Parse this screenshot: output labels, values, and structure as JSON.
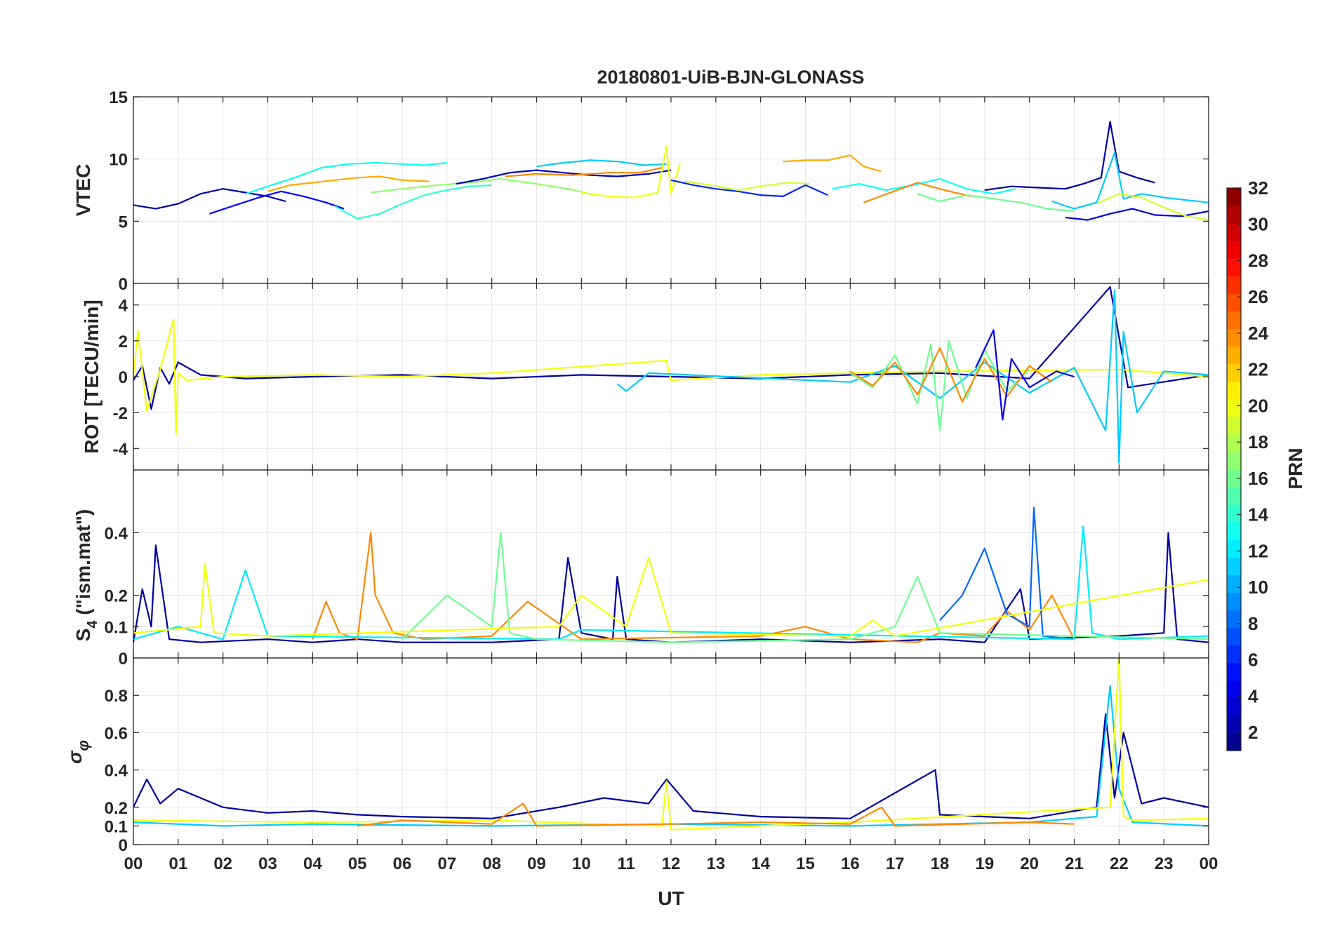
{
  "figure": {
    "title": "20180801-UiB-BJN-GLONASS",
    "xlabel": "UT",
    "x_tick_labels": [
      "00",
      "01",
      "02",
      "03",
      "04",
      "05",
      "06",
      "07",
      "08",
      "09",
      "10",
      "11",
      "12",
      "13",
      "14",
      "15",
      "16",
      "17",
      "18",
      "19",
      "20",
      "21",
      "22",
      "23",
      "00"
    ]
  },
  "chart_data": [
    {
      "type": "line",
      "id": "vtec",
      "ylabel": "VTEC",
      "ylim": [
        0,
        15
      ],
      "yticks": [
        0,
        5,
        10,
        15
      ],
      "xlim": [
        0,
        24
      ],
      "grid": true,
      "color_by": "PRN",
      "series": [
        {
          "prn": 2,
          "x": [
            0.0,
            0.5,
            1.0,
            1.5,
            2.0,
            2.5,
            3.0,
            3.4
          ],
          "y": [
            6.3,
            6.0,
            6.4,
            7.2,
            7.6,
            7.3,
            7.0,
            6.6
          ]
        },
        {
          "prn": 5,
          "x": [
            1.7,
            2.2,
            2.8,
            3.3,
            3.8,
            4.3,
            4.7
          ],
          "y": [
            5.6,
            6.2,
            6.9,
            7.4,
            7.0,
            6.5,
            6.0
          ]
        },
        {
          "prn": 13,
          "x": [
            2.5,
            3.0,
            3.6,
            4.2,
            4.8,
            5.4,
            6.0,
            6.5,
            7.0
          ],
          "y": [
            7.2,
            7.8,
            8.5,
            9.3,
            9.6,
            9.7,
            9.6,
            9.5,
            9.7
          ]
        },
        {
          "prn": 23,
          "x": [
            3.0,
            3.5,
            4.0,
            4.5,
            5.0,
            5.5,
            6.0,
            6.6
          ],
          "y": [
            7.4,
            7.9,
            8.1,
            8.3,
            8.5,
            8.6,
            8.3,
            8.2
          ]
        },
        {
          "prn": 14,
          "x": [
            4.5,
            5.0,
            5.5,
            6.0,
            6.5,
            7.0,
            7.5,
            8.0
          ],
          "y": [
            6.2,
            5.2,
            5.6,
            6.4,
            7.1,
            7.5,
            7.8,
            7.9
          ]
        },
        {
          "prn": 17,
          "x": [
            5.3,
            6.0,
            6.8,
            7.5,
            8.2,
            9.0,
            9.7,
            10.3
          ],
          "y": [
            7.3,
            7.6,
            7.9,
            8.1,
            8.4,
            8.0,
            7.6,
            7.1
          ]
        },
        {
          "prn": 3,
          "x": [
            7.2,
            7.8,
            8.4,
            9.0,
            9.6,
            10.2,
            10.8,
            11.5,
            12.0
          ],
          "y": [
            8.0,
            8.4,
            8.9,
            9.1,
            8.9,
            8.7,
            8.6,
            8.8,
            9.1
          ]
        },
        {
          "prn": 11,
          "x": [
            9.0,
            9.6,
            10.2,
            10.8,
            11.4,
            11.9
          ],
          "y": [
            9.4,
            9.7,
            9.9,
            9.8,
            9.5,
            9.6
          ]
        },
        {
          "prn": 20,
          "x": [
            10.0,
            10.6,
            11.2,
            11.7,
            11.9,
            12.0,
            12.2
          ],
          "y": [
            7.3,
            7.0,
            6.9,
            7.3,
            11.0,
            7.2,
            9.6
          ]
        },
        {
          "prn": 24,
          "x": [
            8.3,
            9.0,
            9.8,
            10.6,
            11.3,
            11.8
          ],
          "y": [
            8.6,
            8.8,
            8.7,
            8.9,
            8.9,
            9.3
          ]
        },
        {
          "prn": 6,
          "x": [
            12.0,
            12.5,
            13.0,
            13.5,
            14.0,
            14.5,
            15.0,
            15.5
          ],
          "y": [
            8.3,
            7.9,
            7.6,
            7.4,
            7.1,
            7.0,
            7.9,
            7.1
          ]
        },
        {
          "prn": 19,
          "x": [
            12.3,
            12.9,
            13.5,
            14.0,
            14.6,
            15.1
          ],
          "y": [
            8.2,
            7.9,
            7.5,
            7.8,
            8.1,
            8.0
          ]
        },
        {
          "prn": 23,
          "x": [
            14.5,
            15.0,
            15.5,
            16.0,
            16.3,
            16.7
          ],
          "y": [
            9.8,
            9.9,
            9.9,
            10.3,
            9.4,
            9.0
          ]
        },
        {
          "prn": 13,
          "x": [
            15.6,
            16.2,
            16.8,
            17.4,
            18.0,
            18.6,
            19.2,
            19.7
          ],
          "y": [
            7.6,
            8.0,
            7.5,
            7.9,
            8.4,
            7.6,
            7.2,
            7.6
          ]
        },
        {
          "prn": 24,
          "x": [
            16.3,
            16.9,
            17.5,
            18.1,
            18.7
          ],
          "y": [
            6.5,
            7.3,
            8.1,
            7.5,
            7.0
          ]
        },
        {
          "prn": 16,
          "x": [
            17.5,
            18.0,
            18.6,
            19.2,
            19.8,
            20.4,
            21.0
          ],
          "y": [
            7.2,
            6.6,
            7.1,
            6.8,
            6.5,
            6.0,
            5.8
          ]
        },
        {
          "prn": 2,
          "x": [
            19.0,
            19.6,
            20.2,
            20.8,
            21.2,
            21.6,
            21.8,
            22.0,
            22.4,
            22.8
          ],
          "y": [
            7.5,
            7.8,
            7.7,
            7.6,
            8.0,
            8.5,
            13.0,
            9.0,
            8.5,
            8.1
          ]
        },
        {
          "prn": 11,
          "x": [
            20.5,
            21.0,
            21.5,
            21.9,
            22.1,
            22.5,
            23.0,
            23.5,
            24.0
          ],
          "y": [
            6.6,
            6.0,
            6.5,
            10.5,
            6.8,
            7.2,
            6.9,
            6.7,
            6.5
          ]
        },
        {
          "prn": 4,
          "x": [
            20.8,
            21.3,
            21.8,
            22.3,
            22.8,
            23.4,
            24.0
          ],
          "y": [
            5.3,
            5.1,
            5.6,
            6.0,
            5.5,
            5.4,
            5.8
          ]
        },
        {
          "prn": 19,
          "x": [
            21.5,
            22.0,
            22.5,
            23.0,
            23.5,
            24.0
          ],
          "y": [
            6.4,
            7.2,
            6.9,
            6.1,
            5.4,
            5.1
          ]
        }
      ]
    },
    {
      "type": "line",
      "id": "rot",
      "ylabel": "ROT [TECU/min]",
      "ylim": [
        -5.2,
        5.2
      ],
      "yticks": [
        -4,
        -2,
        0,
        2,
        4
      ],
      "xlim": [
        0,
        24
      ],
      "grid": true,
      "color_by": "PRN",
      "series": [
        {
          "prn": 2,
          "x": [
            0.0,
            0.2,
            0.4,
            0.6,
            0.8,
            1.0,
            1.5,
            2.5,
            4.0,
            6.0,
            8.0,
            10.0,
            12.0,
            14.0,
            16.0,
            18.0,
            20.0,
            21.8,
            22.2,
            24.0
          ],
          "y": [
            -0.2,
            0.6,
            -1.8,
            0.5,
            -0.4,
            0.8,
            0.1,
            -0.1,
            0.0,
            0.1,
            -0.1,
            0.1,
            0.0,
            -0.1,
            0.1,
            0.2,
            -0.1,
            5.0,
            -0.6,
            0.1
          ]
        },
        {
          "prn": 20,
          "x": [
            0.0,
            0.1,
            0.3,
            0.6,
            0.9,
            0.95,
            1.0,
            1.2,
            2.0,
            4.0,
            6.0,
            8.0,
            11.9,
            12.0,
            14.0,
            18.0,
            22.0,
            24.0
          ],
          "y": [
            0.0,
            2.6,
            -1.9,
            0.4,
            3.2,
            -3.2,
            0.2,
            -0.2,
            0.0,
            0.1,
            0.0,
            0.2,
            0.9,
            -0.2,
            0.1,
            0.3,
            0.4,
            0.0
          ]
        },
        {
          "prn": 11,
          "x": [
            10.8,
            11.0,
            11.5,
            16.0,
            17.0,
            18.0,
            19.0,
            20.0,
            21.0,
            21.7,
            21.9,
            22.0,
            22.1,
            22.4,
            23.0,
            24.0
          ],
          "y": [
            -0.4,
            -0.8,
            0.2,
            -0.3,
            0.6,
            -1.2,
            0.8,
            -0.9,
            0.5,
            -3.0,
            4.8,
            -4.8,
            2.5,
            -2.0,
            0.3,
            0.1
          ]
        },
        {
          "prn": 16,
          "x": [
            16.0,
            16.5,
            17.0,
            17.5,
            17.8,
            18.0,
            18.2,
            18.6,
            19.0,
            19.5,
            20.0
          ],
          "y": [
            0.2,
            -0.6,
            1.2,
            -1.5,
            1.8,
            -3.0,
            2.0,
            -1.2,
            1.5,
            -0.8,
            0.4
          ]
        },
        {
          "prn": 24,
          "x": [
            16.0,
            16.5,
            17.0,
            17.5,
            18.0,
            18.5,
            19.0,
            19.5,
            20.0,
            20.5
          ],
          "y": [
            0.3,
            -0.5,
            0.8,
            -1.0,
            1.6,
            -1.4,
            1.0,
            -1.1,
            0.6,
            -0.3
          ]
        },
        {
          "prn": 4,
          "x": [
            18.8,
            19.2,
            19.4,
            19.6,
            20.0,
            20.6,
            21.0
          ],
          "y": [
            0.5,
            2.6,
            -2.4,
            1.0,
            -0.6,
            0.3,
            0.0
          ]
        }
      ]
    },
    {
      "type": "line",
      "id": "s4",
      "ylabel": "S4 (\"ism.mat\")",
      "ylim": [
        0,
        0.6
      ],
      "yticks": [
        0,
        0.1,
        0.2,
        0.4
      ],
      "xlim": [
        0,
        24
      ],
      "grid": true,
      "color_by": "PRN",
      "series": [
        {
          "prn": 2,
          "x": [
            0.0,
            0.2,
            0.4,
            0.5,
            0.8,
            1.5,
            3.0,
            4.0,
            5.0,
            6.0,
            8.0,
            9.5,
            9.7,
            10.0,
            10.7,
            10.8,
            11.0,
            12.0,
            14.0,
            16.0,
            18.0,
            19.0,
            19.8,
            20.0,
            22.0,
            23.0,
            23.1,
            23.3,
            24.0
          ],
          "y": [
            0.05,
            0.22,
            0.1,
            0.36,
            0.06,
            0.05,
            0.06,
            0.05,
            0.06,
            0.05,
            0.05,
            0.06,
            0.32,
            0.08,
            0.06,
            0.26,
            0.06,
            0.05,
            0.06,
            0.05,
            0.06,
            0.05,
            0.22,
            0.06,
            0.07,
            0.08,
            0.4,
            0.06,
            0.05
          ]
        },
        {
          "prn": 24,
          "x": [
            4.0,
            4.3,
            4.6,
            5.0,
            5.3,
            5.4,
            5.8,
            6.5,
            8.0,
            8.8,
            10.0,
            14.0,
            15.0,
            16.0,
            17.5,
            18.0,
            19.0,
            19.5,
            20.0,
            20.5,
            21.0
          ],
          "y": [
            0.06,
            0.18,
            0.08,
            0.06,
            0.4,
            0.2,
            0.08,
            0.06,
            0.07,
            0.18,
            0.06,
            0.07,
            0.1,
            0.06,
            0.05,
            0.08,
            0.07,
            0.15,
            0.09,
            0.2,
            0.06
          ]
        },
        {
          "prn": 8,
          "x": [
            18.0,
            18.5,
            19.0,
            19.5,
            20.0,
            20.1,
            20.3,
            21.0
          ],
          "y": [
            0.12,
            0.2,
            0.35,
            0.14,
            0.1,
            0.48,
            0.07,
            0.06
          ]
        },
        {
          "prn": 12,
          "x": [
            0.0,
            1.0,
            2.0,
            2.5,
            3.0,
            9.5,
            10.0,
            21.0,
            21.2,
            21.4,
            22.0,
            24.0
          ],
          "y": [
            0.06,
            0.1,
            0.06,
            0.28,
            0.07,
            0.06,
            0.09,
            0.06,
            0.42,
            0.08,
            0.06,
            0.07
          ]
        },
        {
          "prn": 16,
          "x": [
            6.0,
            7.0,
            8.0,
            8.2,
            8.4,
            9.0,
            12.0,
            16.0,
            17.0,
            17.5,
            18.0,
            24.0
          ],
          "y": [
            0.06,
            0.2,
            0.1,
            0.4,
            0.08,
            0.06,
            0.05,
            0.06,
            0.1,
            0.26,
            0.08,
            0.06
          ]
        },
        {
          "prn": 20,
          "x": [
            0.0,
            1.5,
            1.6,
            1.8,
            3.0,
            9.5,
            10.0,
            11.0,
            11.5,
            12.0,
            16.0,
            16.5,
            17.0,
            24.0
          ],
          "y": [
            0.08,
            0.1,
            0.3,
            0.08,
            0.07,
            0.1,
            0.2,
            0.1,
            0.32,
            0.08,
            0.07,
            0.12,
            0.07,
            0.25
          ]
        }
      ]
    },
    {
      "type": "line",
      "id": "sigma_phi",
      "ylabel": "σφ",
      "ylim": [
        0,
        1
      ],
      "yticks": [
        0,
        0.1,
        0.2,
        0.4,
        0.6,
        0.8
      ],
      "xlim": [
        0,
        24
      ],
      "grid": true,
      "color_by": "PRN",
      "series": [
        {
          "prn": 2,
          "x": [
            0.0,
            0.3,
            0.6,
            1.0,
            2.0,
            3.0,
            4.0,
            5.0,
            6.0,
            8.0,
            9.5,
            10.5,
            11.5,
            11.9,
            12.5,
            14.0,
            16.0,
            17.9,
            18.0,
            20.0,
            21.5,
            21.7,
            21.9,
            22.1,
            22.5,
            23.0,
            24.0
          ],
          "y": [
            0.2,
            0.35,
            0.22,
            0.3,
            0.2,
            0.17,
            0.18,
            0.16,
            0.15,
            0.14,
            0.2,
            0.25,
            0.22,
            0.35,
            0.18,
            0.15,
            0.14,
            0.4,
            0.16,
            0.14,
            0.2,
            0.7,
            0.25,
            0.6,
            0.22,
            0.25,
            0.2
          ]
        },
        {
          "prn": 11,
          "x": [
            0.0,
            2.0,
            4.0,
            8.0,
            12.0,
            16.0,
            20.0,
            21.5,
            21.8,
            22.0,
            22.3,
            24.0
          ],
          "y": [
            0.12,
            0.1,
            0.11,
            0.1,
            0.11,
            0.1,
            0.12,
            0.15,
            0.85,
            0.3,
            0.12,
            0.1
          ]
        },
        {
          "prn": 20,
          "x": [
            0.0,
            4.0,
            8.0,
            11.8,
            11.9,
            12.0,
            16.0,
            21.8,
            22.0,
            22.1,
            22.3,
            24.0
          ],
          "y": [
            0.13,
            0.12,
            0.13,
            0.1,
            0.34,
            0.08,
            0.12,
            0.2,
            1.0,
            0.15,
            0.13,
            0.14
          ]
        },
        {
          "prn": 24,
          "x": [
            5.0,
            6.0,
            8.0,
            8.7,
            9.0,
            12.0,
            14.0,
            16.0,
            16.7,
            17.0,
            20.0,
            21.0
          ],
          "y": [
            0.1,
            0.13,
            0.11,
            0.22,
            0.1,
            0.11,
            0.12,
            0.11,
            0.2,
            0.1,
            0.12,
            0.11
          ]
        }
      ]
    }
  ],
  "colorbar": {
    "label": "PRN",
    "range": [
      1,
      32
    ],
    "ticks": [
      2,
      4,
      6,
      8,
      10,
      12,
      14,
      16,
      18,
      20,
      22,
      24,
      26,
      28,
      30,
      32
    ],
    "colormap": "jet"
  }
}
